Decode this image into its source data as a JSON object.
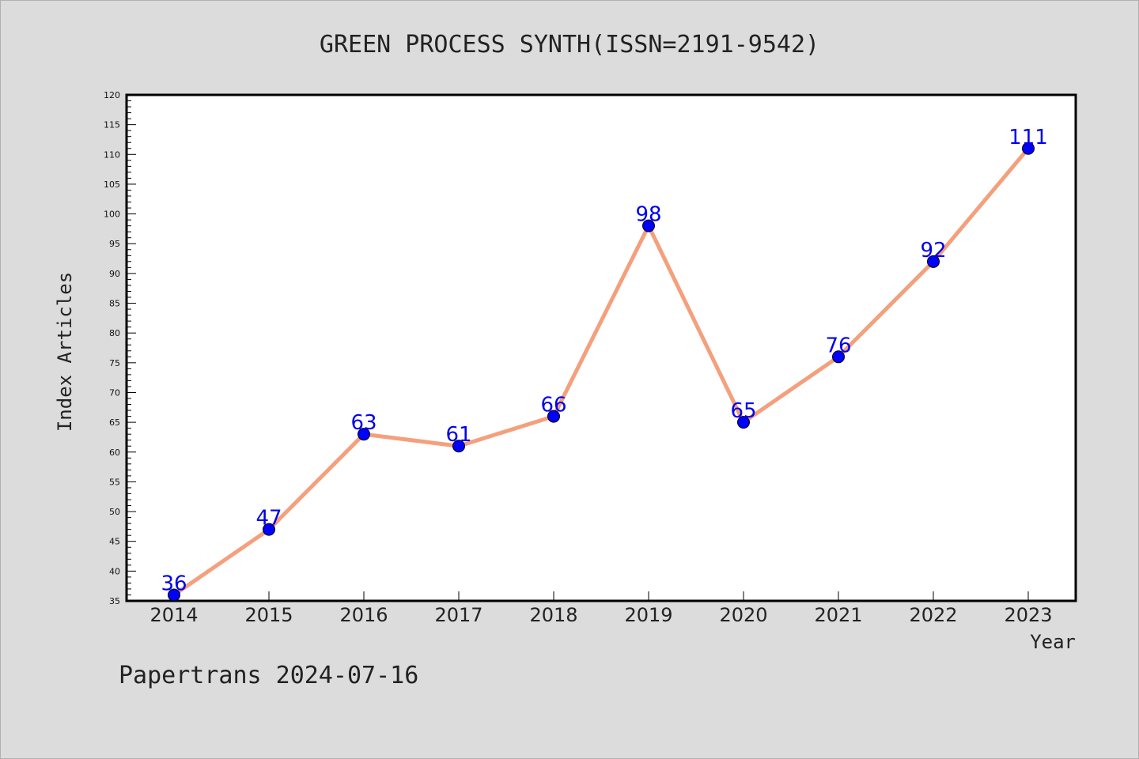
{
  "chart_data": {
    "type": "line",
    "title": "GREEN PROCESS SYNTH(ISSN=2191-9542)",
    "xlabel": "Year",
    "ylabel": "Index Articles",
    "categories": [
      "2014",
      "2015",
      "2016",
      "2017",
      "2018",
      "2019",
      "2020",
      "2021",
      "2022",
      "2023"
    ],
    "series": [
      {
        "values": [
          36,
          47,
          63,
          61,
          66,
          98,
          65,
          76,
          92,
          111
        ]
      }
    ],
    "ylim": [
      35,
      120
    ],
    "yticks": [
      "35",
      "40",
      "45",
      "50",
      "55",
      "60",
      "65",
      "70",
      "75",
      "80",
      "85",
      "90",
      "95",
      "100",
      "105",
      "110",
      "115",
      "120"
    ],
    "grid": false,
    "line_color": "#f4a07c",
    "marker_color": "#0000ff",
    "label_color": "#0000ee"
  },
  "footer": "Papertrans 2024-07-16"
}
